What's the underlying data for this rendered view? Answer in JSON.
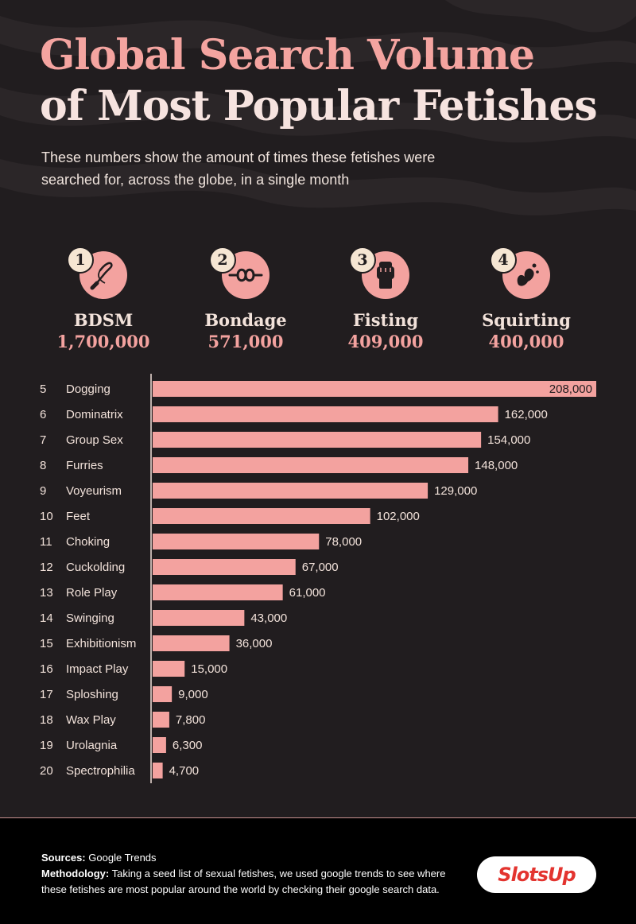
{
  "title_line1": "Global Search Volume",
  "title_line2": "of Most Popular Fetishes",
  "subtitle": "These numbers show the amount of times these fetishes were searched for, across the globe, in a single month",
  "top4": [
    {
      "rank": "1",
      "name": "BDSM",
      "value": "1,700,000",
      "icon": "whip-icon"
    },
    {
      "rank": "2",
      "name": "Bondage",
      "value": "571,000",
      "icon": "rope-knot-icon"
    },
    {
      "rank": "3",
      "name": "Fisting",
      "value": "409,000",
      "icon": "fist-icon"
    },
    {
      "rank": "4",
      "name": "Squirting",
      "value": "400,000",
      "icon": "splash-icon"
    }
  ],
  "chart_data": {
    "type": "bar",
    "orientation": "horizontal",
    "ranks": [
      "5",
      "6",
      "7",
      "8",
      "9",
      "10",
      "11",
      "12",
      "13",
      "14",
      "15",
      "16",
      "17",
      "18",
      "19",
      "20"
    ],
    "categories": [
      "Dogging",
      "Dominatrix",
      "Group Sex",
      "Furries",
      "Voyeurism",
      "Feet",
      "Choking",
      "Cuckolding",
      "Role Play",
      "Swinging",
      "Exhibitionism",
      "Impact Play",
      "Sploshing",
      "Wax Play",
      "Urolagnia",
      "Spectrophilia"
    ],
    "values": [
      208000,
      162000,
      154000,
      148000,
      129000,
      102000,
      78000,
      67000,
      61000,
      43000,
      36000,
      15000,
      9000,
      7800,
      6300,
      4700
    ],
    "labels": [
      "208,000",
      "162,000",
      "154,000",
      "148,000",
      "129,000",
      "102,000",
      "78,000",
      "67,000",
      "61,000",
      "43,000",
      "36,000",
      "15,000",
      "9,000",
      "7,800",
      "6,300",
      "4,700"
    ],
    "xlim": [
      0,
      208000
    ],
    "bar_color": "#f3a29f"
  },
  "footer": {
    "sources_label": "Sources:",
    "sources_text": "Google Trends",
    "methodology_label": "Methodology:",
    "methodology_text": "Taking a seed list of sexual fetishes, we used google trends to see where these fetishes are most popular around the world by checking their google search data.",
    "logo_text": "SlotsUp"
  },
  "colors": {
    "background": "#211d1f",
    "accent": "#f3a29f",
    "cream": "#f6e6d3",
    "footer": "#000000"
  }
}
